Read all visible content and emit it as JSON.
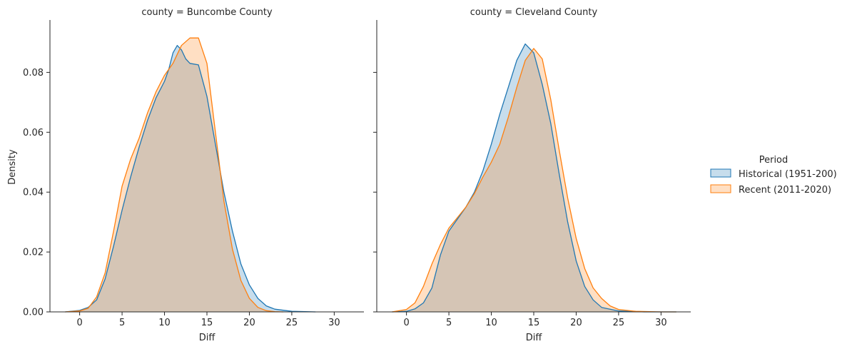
{
  "chart_data": [
    {
      "type": "area",
      "title": "county = Buncombe County",
      "xlabel": "Diff",
      "ylabel": "Density",
      "xlim": [
        -3.5,
        33.5
      ],
      "ylim": [
        0,
        0.0975
      ],
      "xticks": [
        "0",
        "5",
        "10",
        "15",
        "20",
        "25",
        "30"
      ],
      "yticks": [
        "0.00",
        "0.02",
        "0.04",
        "0.06",
        "0.08"
      ],
      "series": [
        {
          "name": "Historical (1951-200)",
          "points": [
            [
              -1.7,
              0
            ],
            [
              0,
              0.0005
            ],
            [
              1,
              0.0015
            ],
            [
              2,
              0.004
            ],
            [
              3,
              0.011
            ],
            [
              4,
              0.022
            ],
            [
              5,
              0.034
            ],
            [
              6,
              0.045
            ],
            [
              7,
              0.055
            ],
            [
              8,
              0.064
            ],
            [
              9,
              0.0715
            ],
            [
              10,
              0.077
            ],
            [
              10.5,
              0.081
            ],
            [
              11,
              0.0865
            ],
            [
              11.5,
              0.089
            ],
            [
              12,
              0.0875
            ],
            [
              12.5,
              0.0845
            ],
            [
              13,
              0.083
            ],
            [
              14,
              0.0825
            ],
            [
              15,
              0.072
            ],
            [
              16,
              0.056
            ],
            [
              17,
              0.04
            ],
            [
              18,
              0.027
            ],
            [
              19,
              0.016
            ],
            [
              20,
              0.009
            ],
            [
              21,
              0.0045
            ],
            [
              22,
              0.002
            ],
            [
              23,
              0.0009
            ],
            [
              25,
              0.0002
            ],
            [
              27.8,
              0
            ]
          ]
        },
        {
          "name": "Recent (2011-2020)",
          "points": [
            [
              -1.7,
              0
            ],
            [
              0,
              0.0003
            ],
            [
              1,
              0.0012
            ],
            [
              2,
              0.005
            ],
            [
              3,
              0.013
            ],
            [
              4,
              0.027
            ],
            [
              5,
              0.042
            ],
            [
              6,
              0.051
            ],
            [
              7,
              0.058
            ],
            [
              8,
              0.0665
            ],
            [
              9,
              0.0735
            ],
            [
              10,
              0.079
            ],
            [
              11,
              0.083
            ],
            [
              12,
              0.089
            ],
            [
              13,
              0.0915
            ],
            [
              14,
              0.0915
            ],
            [
              15,
              0.083
            ],
            [
              16,
              0.06
            ],
            [
              17,
              0.037
            ],
            [
              18,
              0.021
            ],
            [
              19,
              0.0105
            ],
            [
              20,
              0.0045
            ],
            [
              21,
              0.0015
            ],
            [
              22,
              0.0004
            ],
            [
              23,
              0.0001
            ],
            [
              24,
              0
            ]
          ]
        }
      ]
    },
    {
      "type": "area",
      "title": "county = Cleveland County",
      "xlabel": "Diff",
      "ylabel": "",
      "xlim": [
        -3.5,
        33.5
      ],
      "ylim": [
        0,
        0.0975
      ],
      "xticks": [
        "0",
        "5",
        "10",
        "15",
        "20",
        "25",
        "30"
      ],
      "yticks": [],
      "series": [
        {
          "name": "Historical (1951-200)",
          "points": [
            [
              -1.7,
              0
            ],
            [
              0,
              0.0002
            ],
            [
              1,
              0.001
            ],
            [
              2,
              0.003
            ],
            [
              3,
              0.008
            ],
            [
              4,
              0.019
            ],
            [
              5,
              0.027
            ],
            [
              6,
              0.031
            ],
            [
              7,
              0.035
            ],
            [
              8,
              0.04
            ],
            [
              9,
              0.047
            ],
            [
              10,
              0.056
            ],
            [
              11,
              0.066
            ],
            [
              12,
              0.075
            ],
            [
              13,
              0.084
            ],
            [
              14,
              0.0895
            ],
            [
              15,
              0.0865
            ],
            [
              16,
              0.076
            ],
            [
              17,
              0.063
            ],
            [
              18,
              0.046
            ],
            [
              19,
              0.03
            ],
            [
              20,
              0.017
            ],
            [
              21,
              0.0085
            ],
            [
              22,
              0.004
            ],
            [
              23,
              0.0015
            ],
            [
              25,
              0.0003
            ],
            [
              28,
              0
            ],
            [
              31.8,
              0
            ]
          ]
        },
        {
          "name": "Recent (2011-2020)",
          "points": [
            [
              -1.7,
              0
            ],
            [
              0,
              0.0008
            ],
            [
              1,
              0.003
            ],
            [
              2,
              0.0085
            ],
            [
              3,
              0.016
            ],
            [
              4,
              0.0225
            ],
            [
              5,
              0.028
            ],
            [
              6,
              0.0315
            ],
            [
              7,
              0.035
            ],
            [
              8,
              0.0395
            ],
            [
              9,
              0.045
            ],
            [
              10,
              0.05
            ],
            [
              11,
              0.056
            ],
            [
              12,
              0.065
            ],
            [
              13,
              0.075
            ],
            [
              14,
              0.084
            ],
            [
              15,
              0.088
            ],
            [
              16,
              0.0845
            ],
            [
              17,
              0.071
            ],
            [
              18,
              0.054
            ],
            [
              19,
              0.038
            ],
            [
              20,
              0.0245
            ],
            [
              21,
              0.0145
            ],
            [
              22,
              0.008
            ],
            [
              23,
              0.0045
            ],
            [
              24,
              0.002
            ],
            [
              25,
              0.0008
            ],
            [
              27,
              0.0002
            ],
            [
              30,
              0
            ],
            [
              31.8,
              0
            ]
          ]
        }
      ]
    }
  ],
  "legend": {
    "title": "Period",
    "items": [
      {
        "label": "Historical (1951-200)",
        "color": "#1f77b4"
      },
      {
        "label": "Recent (2011-2020)",
        "color": "#ff7f0e"
      }
    ]
  },
  "colors": {
    "series": [
      "#1f77b4",
      "#ff7f0e"
    ],
    "axis": "#262626"
  }
}
